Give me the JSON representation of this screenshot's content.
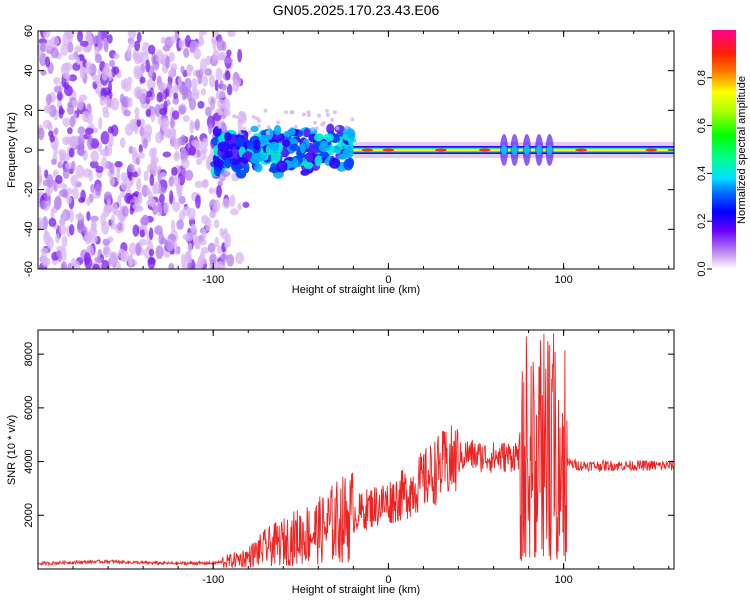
{
  "figure_title": "GN05.2025.170.23.43.E06",
  "chart_data": [
    {
      "type": "heatmap",
      "xlabel": "Height of straight line (km)",
      "ylabel": "Frequency (Hz)",
      "xlim": [
        -200,
        163
      ],
      "ylim": [
        -60,
        60
      ],
      "xticks": [
        -100,
        0,
        100
      ],
      "yticks": [
        60,
        40,
        20,
        0,
        -20,
        -40,
        -60
      ],
      "colorbar": {
        "label": "Normalized spectral amplitude",
        "range": [
          0,
          1
        ],
        "ticks": [
          "0.0",
          "0.2",
          "0.4",
          "0.6",
          "0.8"
        ],
        "colors": [
          "#ffffff",
          "#d8b4f4",
          "#8a2be2",
          "#3b00ff",
          "#0000ff",
          "#0070ff",
          "#00e0ff",
          "#00ffb0",
          "#00ff00",
          "#a0ff00",
          "#ffff00",
          "#ff9000",
          "#ff3000",
          "#ff0050",
          "#ff0090"
        ]
      },
      "regions": [
        {
          "x": [
            -200,
            -90
          ],
          "freq": [
            -60,
            60
          ],
          "level": 0.05,
          "texture": "scattered"
        },
        {
          "x": [
            -100,
            -20
          ],
          "freq": [
            -10,
            10
          ],
          "level": 0.3,
          "texture": "clustered"
        },
        {
          "x": [
            -20,
            163
          ],
          "freq": [
            -3,
            3
          ],
          "level": 0.85,
          "texture": "band"
        }
      ]
    },
    {
      "type": "line",
      "xlabel": "Height of straight line (km)",
      "ylabel": "SNR (10 * v/v)",
      "xlim": [
        -200,
        163
      ],
      "ylim": [
        0,
        8900
      ],
      "xticks": [
        -100,
        0,
        100
      ],
      "yticks": [
        2000,
        4000,
        6000,
        8000
      ],
      "color": "#ee2222",
      "x": [
        -200,
        -180,
        -160,
        -140,
        -120,
        -100,
        -90,
        -80,
        -70,
        -60,
        -50,
        -40,
        -30,
        -20,
        -10,
        0,
        10,
        20,
        30,
        40,
        45,
        50,
        60,
        70,
        75,
        80,
        85,
        90,
        95,
        100,
        105,
        110,
        120,
        130,
        140,
        150,
        163
      ],
      "y": [
        200,
        250,
        280,
        230,
        210,
        220,
        300,
        450,
        800,
        1000,
        1250,
        1400,
        1750,
        2000,
        2300,
        2500,
        2800,
        3300,
        3800,
        4100,
        4300,
        4200,
        4150,
        4200,
        4300,
        4200,
        4100,
        4100,
        4100,
        4000,
        3900,
        3850,
        3850,
        3850,
        3850,
        3850,
        3850
      ]
    }
  ]
}
